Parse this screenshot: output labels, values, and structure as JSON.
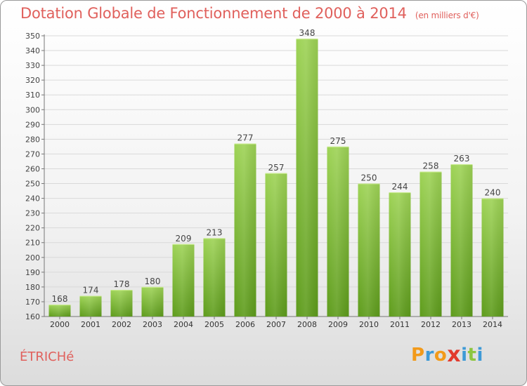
{
  "title": "Dotation Globale de Fonctionnement de 2000 à 2014",
  "unit": "(en milliers d'€)",
  "commune": "ÉTRICHé",
  "logo": {
    "text": "Proxiti",
    "letters": [
      "P",
      "r",
      "o",
      "x",
      "i",
      "t",
      "i"
    ],
    "colors": [
      "#f29a1a",
      "#3e9ad6",
      "#f29a1a",
      "#e23b2e",
      "#3e9ad6",
      "#8cc63f",
      "#3e9ad6"
    ]
  },
  "chart_data": {
    "type": "bar",
    "categories": [
      "2000",
      "2001",
      "2002",
      "2003",
      "2004",
      "2005",
      "2006",
      "2007",
      "2008",
      "2009",
      "2010",
      "2011",
      "2012",
      "2013",
      "2014"
    ],
    "values": [
      168,
      174,
      178,
      180,
      209,
      213,
      277,
      257,
      348,
      275,
      250,
      244,
      258,
      263,
      240
    ],
    "ylim": [
      160,
      350
    ],
    "yticks": [
      160,
      170,
      180,
      190,
      200,
      210,
      220,
      230,
      240,
      250,
      260,
      270,
      280,
      290,
      300,
      310,
      320,
      330,
      340,
      350
    ],
    "grid": true,
    "bar_color": "#7fbf3a",
    "bar_color_dark": "#5d9a1c"
  }
}
